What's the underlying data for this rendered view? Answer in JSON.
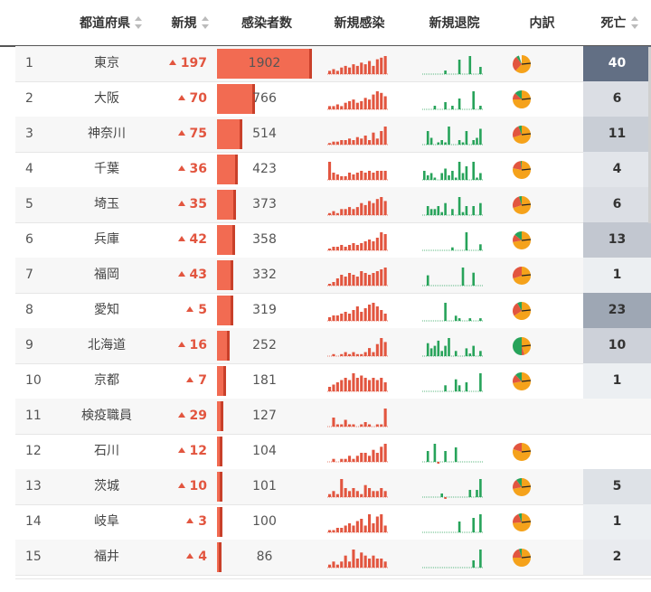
{
  "headers": {
    "prefecture": "都道府県",
    "new": "新規",
    "cases": "感染者数",
    "new_infections": "新規感染",
    "new_discharged": "新規退院",
    "breakdown": "内訳",
    "deaths": "死亡"
  },
  "colors": {
    "accent": "#e2553f",
    "bar": "#f26b52",
    "infection_spark": "#e2553f",
    "discharge_spark": "#27a35a",
    "pie_orange": "#f5a21b",
    "pie_red": "#e2553f",
    "pie_green": "#27a35a",
    "pie_black": "#222222"
  },
  "rows": [
    {
      "rank": "1",
      "pref": "東京",
      "new": "197",
      "cases": "1902",
      "deaths": "40",
      "spark_inf": [
        2,
        3,
        2,
        4,
        5,
        4,
        6,
        5,
        7,
        6,
        8,
        5,
        9,
        10,
        11
      ],
      "spark_dis": [
        0,
        0,
        0,
        0,
        0,
        0,
        1,
        0,
        0,
        0,
        4,
        0,
        0,
        5,
        0,
        0,
        2
      ],
      "pie": [
        0.62,
        0.28,
        0.05
      ]
    },
    {
      "rank": "2",
      "pref": "大阪",
      "new": "70",
      "cases": "766",
      "deaths": "6",
      "spark_inf": [
        2,
        2,
        3,
        2,
        4,
        5,
        6,
        4,
        5,
        7,
        6,
        9,
        11,
        10,
        8
      ],
      "spark_dis": [
        0,
        0,
        0,
        1,
        0,
        0,
        2,
        0,
        1,
        0,
        3,
        0,
        0,
        0,
        5,
        0,
        1
      ],
      "pie": [
        0.75,
        0.12,
        0.13
      ]
    },
    {
      "rank": "3",
      "pref": "神奈川",
      "new": "75",
      "cases": "514",
      "deaths": "11",
      "spark_inf": [
        1,
        2,
        2,
        3,
        3,
        4,
        3,
        5,
        4,
        6,
        3,
        8,
        4,
        9,
        12
      ],
      "spark_dis": [
        0,
        6,
        3,
        0,
        1,
        2,
        1,
        8,
        0,
        0,
        2,
        1,
        6,
        0,
        2,
        3,
        7
      ],
      "pie": [
        0.7,
        0.24,
        0.06
      ]
    },
    {
      "rank": "4",
      "pref": "千葉",
      "new": "36",
      "cases": "423",
      "deaths": "4",
      "spark_inf": [
        10,
        4,
        3,
        2,
        2,
        4,
        3,
        4,
        5,
        4,
        5,
        4,
        5,
        5,
        5
      ],
      "spark_dis": [
        4,
        2,
        3,
        1,
        0,
        3,
        5,
        2,
        4,
        1,
        8,
        3,
        6,
        0,
        8,
        1,
        3
      ],
      "pie": [
        0.78,
        0.2,
        0.02
      ]
    },
    {
      "rank": "5",
      "pref": "埼玉",
      "new": "35",
      "cases": "373",
      "deaths": "6",
      "spark_inf": [
        1,
        2,
        1,
        3,
        3,
        4,
        3,
        4,
        6,
        5,
        7,
        6,
        8,
        9,
        7
      ],
      "spark_dis": [
        0,
        3,
        2,
        2,
        3,
        1,
        4,
        0,
        2,
        0,
        6,
        1,
        3,
        0,
        3,
        0,
        4
      ],
      "pie": [
        0.7,
        0.25,
        0.05
      ]
    },
    {
      "rank": "6",
      "pref": "兵庫",
      "new": "42",
      "cases": "358",
      "deaths": "13",
      "spark_inf": [
        1,
        2,
        2,
        3,
        2,
        3,
        4,
        3,
        4,
        5,
        6,
        5,
        7,
        10,
        9
      ],
      "spark_dis": [
        0,
        0,
        0,
        0,
        0,
        0,
        0,
        0,
        1,
        0,
        0,
        0,
        6,
        0,
        0,
        0,
        2
      ],
      "pie": [
        0.72,
        0.14,
        0.14
      ]
    },
    {
      "rank": "7",
      "pref": "福岡",
      "new": "43",
      "cases": "332",
      "deaths": "1",
      "spark_inf": [
        1,
        2,
        4,
        6,
        5,
        7,
        6,
        5,
        8,
        7,
        6,
        7,
        8,
        9,
        10
      ],
      "spark_dis": [
        0,
        4,
        0,
        0,
        0,
        0,
        0,
        0,
        0,
        0,
        0,
        7,
        0,
        0,
        5,
        0,
        0
      ],
      "pie": [
        0.7,
        0.3,
        0.0
      ]
    },
    {
      "rank": "8",
      "pref": "愛知",
      "new": "5",
      "cases": "319",
      "deaths": "23",
      "spark_inf": [
        2,
        3,
        3,
        4,
        5,
        4,
        6,
        8,
        5,
        7,
        9,
        10,
        8,
        6,
        4
      ],
      "spark_dis": [
        0,
        0,
        0,
        0,
        0,
        0,
        7,
        0,
        0,
        2,
        1,
        0,
        0,
        1,
        0,
        0,
        1
      ],
      "pie": [
        0.66,
        0.26,
        0.08
      ]
    },
    {
      "rank": "9",
      "pref": "北海道",
      "new": "16",
      "cases": "252",
      "deaths": "10",
      "spark_inf": [
        0,
        1,
        0,
        1,
        2,
        1,
        2,
        1,
        1,
        2,
        4,
        2,
        6,
        9,
        7
      ],
      "spark_dis": [
        0,
        5,
        3,
        4,
        6,
        2,
        4,
        7,
        0,
        2,
        0,
        0,
        3,
        1,
        4,
        0,
        2
      ],
      "pie": [
        0.45,
        0.05,
        0.5
      ]
    },
    {
      "rank": "10",
      "pref": "京都",
      "new": "7",
      "cases": "181",
      "deaths": "1",
      "spark_inf": [
        2,
        3,
        4,
        5,
        6,
        5,
        8,
        6,
        7,
        6,
        5,
        6,
        5,
        6,
        4
      ],
      "spark_dis": [
        0,
        0,
        0,
        0,
        0,
        0,
        2,
        0,
        0,
        4,
        2,
        0,
        3,
        0,
        0,
        0,
        6
      ],
      "pie": [
        0.72,
        0.16,
        0.12
      ]
    },
    {
      "rank": "11",
      "pref": "検疫職員",
      "new": "29",
      "cases": "127",
      "deaths": "",
      "spark_inf": [
        0,
        4,
        1,
        1,
        3,
        1,
        1,
        0,
        1,
        2,
        1,
        0,
        1,
        1,
        8
      ],
      "spark_dis": [],
      "pie": []
    },
    {
      "rank": "12",
      "pref": "石川",
      "new": "12",
      "cases": "104",
      "deaths": "",
      "spark_inf": [
        0,
        1,
        0,
        1,
        1,
        2,
        1,
        2,
        3,
        3,
        2,
        4,
        3,
        5,
        6
      ],
      "spark_dis": [
        0,
        3,
        0,
        5,
        -4,
        0,
        3,
        0,
        0,
        4,
        0,
        0,
        0,
        0,
        0,
        0,
        0
      ],
      "pie": [
        0.8,
        0.2,
        0.0
      ]
    },
    {
      "rank": "13",
      "pref": "茨城",
      "new": "10",
      "cases": "101",
      "deaths": "5",
      "spark_inf": [
        1,
        2,
        1,
        6,
        3,
        2,
        3,
        2,
        1,
        4,
        3,
        2,
        2,
        3,
        2
      ],
      "spark_dis": [
        0,
        0,
        0,
        0,
        0,
        1,
        -3,
        0,
        0,
        0,
        0,
        0,
        0,
        2,
        0,
        2,
        5
      ],
      "pie": [
        0.72,
        0.18,
        0.1
      ]
    },
    {
      "rank": "14",
      "pref": "岐阜",
      "new": "3",
      "cases": "100",
      "deaths": "1",
      "spark_inf": [
        1,
        1,
        2,
        2,
        3,
        4,
        3,
        5,
        6,
        3,
        8,
        4,
        7,
        8,
        3
      ],
      "spark_dis": [
        0,
        0,
        0,
        0,
        0,
        0,
        0,
        0,
        0,
        0,
        3,
        0,
        0,
        0,
        4,
        0,
        5
      ],
      "pie": [
        0.74,
        0.2,
        0.06
      ]
    },
    {
      "rank": "15",
      "pref": "福井",
      "new": "4",
      "cases": "86",
      "deaths": "2",
      "spark_inf": [
        1,
        2,
        1,
        2,
        4,
        2,
        6,
        3,
        5,
        4,
        3,
        4,
        3,
        3,
        2
      ],
      "spark_dis": [
        0,
        0,
        0,
        0,
        0,
        0,
        0,
        0,
        0,
        0,
        0,
        0,
        0,
        0,
        2,
        0,
        5
      ],
      "pie": [
        0.75,
        0.2,
        0.05
      ]
    }
  ]
}
